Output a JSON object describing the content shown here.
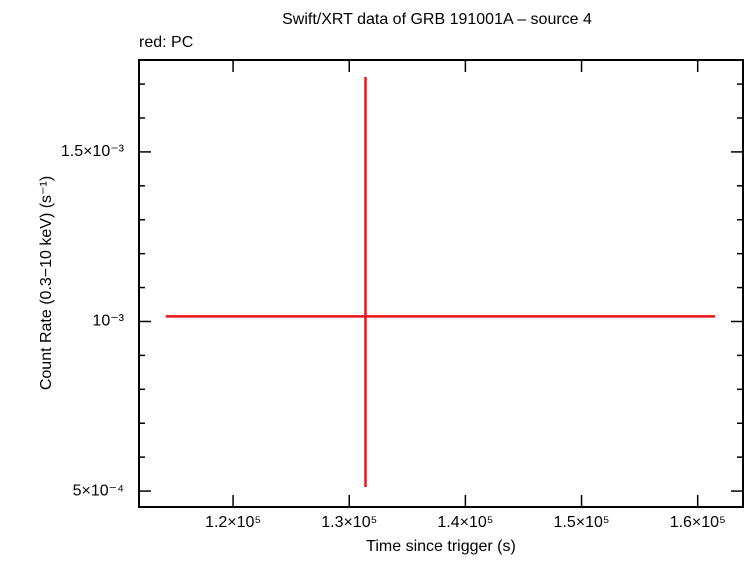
{
  "chart_data": {
    "type": "errorbar",
    "title": "Swift/XRT data of GRB 191001A – source 4",
    "annotation": "red: PC",
    "x_label": "Time since trigger (s)",
    "y_label": "Count Rate (0.3−10 keV) (s⁻¹)",
    "series": [
      {
        "color": "#e8141a",
        "x": [
          131400
        ],
        "values": [
          0.001015
        ],
        "xerr_low": [
          17200
        ],
        "xerr_high": [
          30100
        ],
        "yerr_low": [
          0.000503
        ],
        "yerr_high": [
          0.000706
        ]
      }
    ],
    "xlim": [
      111900,
      163900
    ],
    "ylim": [
      0.000453,
      0.001771
    ],
    "xticks": [
      {
        "value": 120000,
        "label": "1.2×10⁵"
      },
      {
        "value": 130000,
        "label": "1.3×10⁵"
      },
      {
        "value": 140000,
        "label": "1.4×10⁵"
      },
      {
        "value": 150000,
        "label": "1.5×10⁵"
      },
      {
        "value": 160000,
        "label": "1.6×10⁵"
      }
    ],
    "yticks": [
      {
        "value": 0.0005,
        "label": "5×10⁻⁴"
      },
      {
        "value": 0.001,
        "label": "10⁻³"
      },
      {
        "value": 0.0015,
        "label": "1.5×10⁻³"
      }
    ],
    "yminorticks": [
      0.0006,
      0.0007,
      0.0008,
      0.0009,
      0.0011,
      0.0012,
      0.0013,
      0.0014,
      0.0016,
      0.0017
    ]
  }
}
